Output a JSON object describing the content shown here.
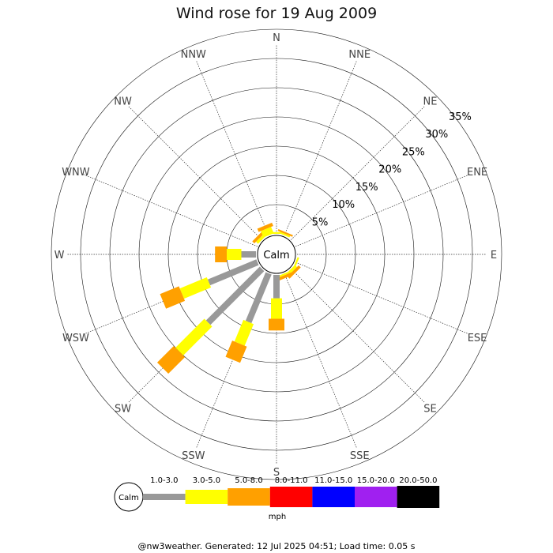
{
  "title": "Wind rose for 19 Aug 2009",
  "footer": "@nw3weather. Generated: 12 Jul 2025 04:51; Load time: 0.05 s",
  "chart_data": {
    "type": "wind-rose",
    "title": "Wind rose for 19 Aug 2009",
    "directions": [
      "N",
      "NNE",
      "NE",
      "ENE",
      "E",
      "ESE",
      "SE",
      "SSE",
      "S",
      "SSW",
      "SW",
      "WSW",
      "W",
      "WNW",
      "NW",
      "NNW"
    ],
    "ring_labels": [
      "5%",
      "10%",
      "15%",
      "20%",
      "25%",
      "30%",
      "35%"
    ],
    "ring_values": [
      5,
      10,
      15,
      20,
      25,
      30,
      35
    ],
    "center_label": "Calm",
    "speed_bins": [
      {
        "label": "1.0-3.0",
        "color": "#999999"
      },
      {
        "label": "3.0-5.0",
        "color": "#ffff00"
      },
      {
        "label": "5.0-8.0",
        "color": "#ffa000"
      },
      {
        "label": "8.0-11.0",
        "color": "#ff0000"
      },
      {
        "label": "11.0-15.0",
        "color": "#0000ff"
      },
      {
        "label": "15.0-20.0",
        "color": "#a020f0"
      },
      {
        "label": "20.0-50.0",
        "color": "#000000"
      }
    ],
    "units": "mph",
    "series": [
      {
        "direction": "N",
        "values": [
          0,
          0.3,
          0
        ]
      },
      {
        "direction": "NNE",
        "values": [
          0,
          0.3,
          0.3
        ]
      },
      {
        "direction": "NE",
        "values": [
          0,
          0,
          0
        ]
      },
      {
        "direction": "ENE",
        "values": [
          0,
          0,
          0
        ]
      },
      {
        "direction": "E",
        "values": [
          0,
          0,
          0
        ]
      },
      {
        "direction": "ESE",
        "values": [
          0,
          0.3,
          0
        ]
      },
      {
        "direction": "SE",
        "values": [
          0,
          0.5,
          0.5
        ]
      },
      {
        "direction": "SSE",
        "values": [
          0,
          0.3,
          0.5
        ]
      },
      {
        "direction": "S",
        "values": [
          4.0,
          3.5,
          2.0
        ]
      },
      {
        "direction": "SSW",
        "values": [
          9.0,
          4.0,
          3.0
        ]
      },
      {
        "direction": "SW",
        "values": [
          13.0,
          7.0,
          4.0
        ]
      },
      {
        "direction": "WSW",
        "values": [
          9.0,
          5.0,
          3.5
        ]
      },
      {
        "direction": "W",
        "values": [
          2.5,
          2.5,
          2.0
        ]
      },
      {
        "direction": "WNW",
        "values": [
          0,
          0,
          0
        ]
      },
      {
        "direction": "NW",
        "values": [
          0,
          0.5,
          0.5
        ]
      },
      {
        "direction": "NNW",
        "values": [
          0,
          1.2,
          0.6
        ]
      }
    ],
    "grid": true
  }
}
